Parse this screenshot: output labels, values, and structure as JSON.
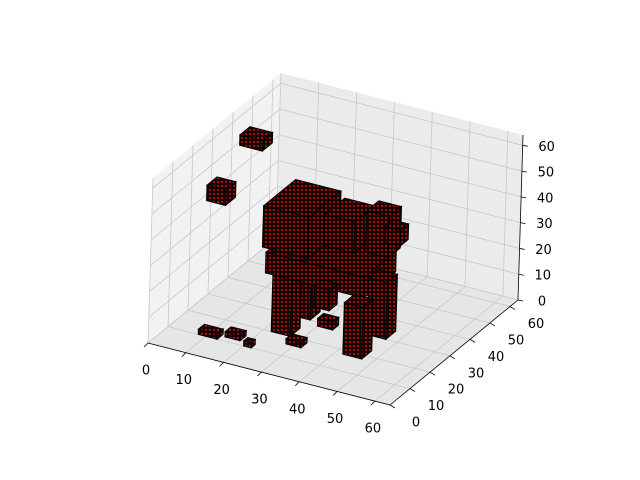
{
  "chart_data": {
    "type": "voxel",
    "color": "#c81414",
    "edge_color": "#000000",
    "xlim": [
      0,
      64
    ],
    "ylim": [
      0,
      64
    ],
    "zlim": [
      0,
      64
    ],
    "xticks": [
      0,
      10,
      20,
      30,
      40,
      50,
      60
    ],
    "yticks": [
      0,
      10,
      20,
      30,
      40,
      50,
      60
    ],
    "zticks": [
      0,
      10,
      20,
      30,
      40,
      50,
      60
    ],
    "grid": true,
    "boxes": [
      {
        "x": [
          22,
          27
        ],
        "y": [
          30,
          35
        ],
        "z": [
          0,
          26
        ]
      },
      {
        "x": [
          22,
          27
        ],
        "y": [
          20,
          25
        ],
        "z": [
          0,
          24
        ]
      },
      {
        "x": [
          42,
          47
        ],
        "y": [
          30,
          35
        ],
        "z": [
          0,
          22
        ]
      },
      {
        "x": [
          42,
          47
        ],
        "y": [
          18,
          23
        ],
        "z": [
          0,
          20
        ]
      },
      {
        "x": [
          20,
          46
        ],
        "y": [
          20,
          36
        ],
        "z": [
          22,
          30
        ]
      },
      {
        "x": [
          18,
          30
        ],
        "y": [
          22,
          38
        ],
        "z": [
          30,
          46
        ]
      },
      {
        "x": [
          30,
          38
        ],
        "y": [
          30,
          40
        ],
        "z": [
          30,
          42
        ]
      },
      {
        "x": [
          40,
          46
        ],
        "y": [
          32,
          38
        ],
        "z": [
          30,
          46
        ]
      },
      {
        "x": [
          44,
          48
        ],
        "y": [
          34,
          38
        ],
        "z": [
          34,
          40
        ]
      },
      {
        "x": [
          32,
          36
        ],
        "y": [
          22,
          26
        ],
        "z": [
          12,
          20
        ]
      },
      {
        "x": [
          4,
          9
        ],
        "y": [
          20,
          25
        ],
        "z": [
          44,
          50
        ]
      },
      {
        "x": [
          2,
          8
        ],
        "y": [
          40,
          45
        ],
        "z": [
          52,
          56
        ]
      },
      {
        "x": [
          8,
          13
        ],
        "y": [
          10,
          13
        ],
        "z": [
          0,
          2
        ]
      },
      {
        "x": [
          14,
          18
        ],
        "y": [
          12,
          15
        ],
        "z": [
          0,
          2
        ]
      },
      {
        "x": [
          20,
          22
        ],
        "y": [
          10,
          12
        ],
        "z": [
          0,
          2
        ]
      },
      {
        "x": [
          30,
          34
        ],
        "y": [
          28,
          31
        ],
        "z": [
          0,
          3
        ]
      },
      {
        "x": [
          28,
          32
        ],
        "y": [
          16,
          19
        ],
        "z": [
          0,
          2
        ]
      }
    ]
  }
}
